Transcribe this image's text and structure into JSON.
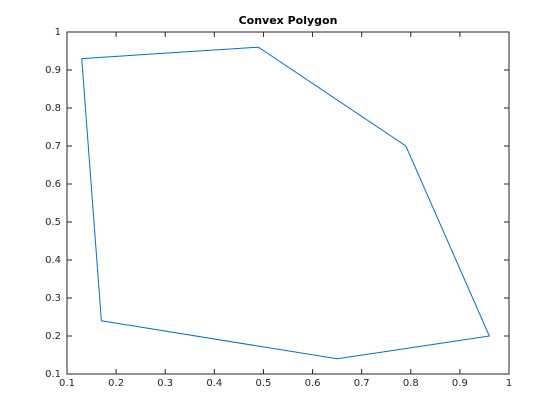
{
  "chart_data": {
    "type": "line",
    "title": "Convex Polygon",
    "x": [
      0.13,
      0.49,
      0.79,
      0.96,
      0.65,
      0.17,
      0.13
    ],
    "values": [
      0.93,
      0.96,
      0.7,
      0.2,
      0.14,
      0.24,
      0.93
    ],
    "color": "#0072bd",
    "xlim": [
      0.1,
      1
    ],
    "ylim": [
      0.1,
      1
    ],
    "xticks": [
      0.1,
      0.2,
      0.3,
      0.4,
      0.5,
      0.6,
      0.7,
      0.8,
      0.9,
      1
    ],
    "yticks": [
      0.1,
      0.2,
      0.3,
      0.4,
      0.5,
      0.6,
      0.7,
      0.8,
      0.9,
      1
    ],
    "grid": false
  }
}
